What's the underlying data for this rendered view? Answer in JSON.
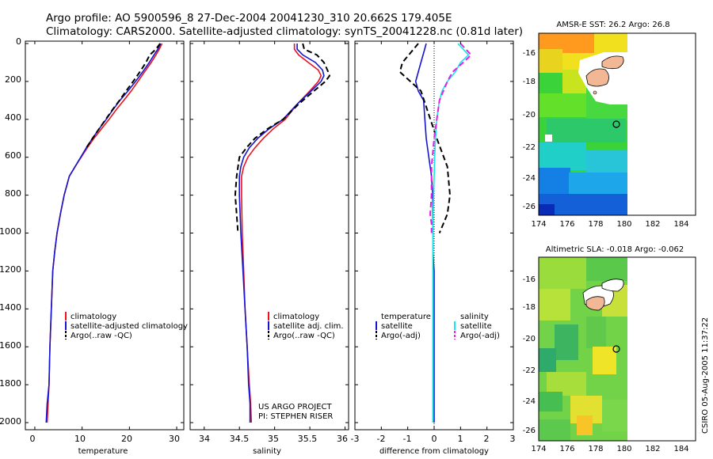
{
  "title_line1": "Argo profile: AO 5900596_8 27-Dec-2004 20041230_310 20.662S 179.405E",
  "title_line2": "Climatology: CARS2000. Satellite-adjusted climatology: synTS_20041228.nc (0.81d later)",
  "project_line1": "US ARGO PROJECT",
  "project_line2": "PI: STEPHEN RISER",
  "side_stamp": "CSIRO 05-Aug-2005 11:37:22",
  "colors": {
    "red": "#e8141e",
    "blue": "#1414d2",
    "black": "#000000",
    "cyan": "#18e6ee",
    "magenta": "#e61ee6"
  },
  "chart_data": [
    {
      "type": "line",
      "xlabel": "temperature",
      "ylabel": "",
      "xlim": [
        -2,
        31.5
      ],
      "ylim": [
        2050,
        0
      ],
      "xticks": [
        "0",
        "10",
        "20",
        "30"
      ],
      "yticks": [
        "0",
        "200",
        "400",
        "600",
        "800",
        "1000",
        "1200",
        "1400",
        "1600",
        "1800",
        "2000"
      ],
      "legend": [
        "climatology",
        "satellite-adjusted climatology",
        "Argo(..raw -QC)"
      ],
      "series": [
        {
          "name": "climatology",
          "color": "red",
          "dashed": false,
          "x": [
            26.9,
            26.3,
            25.6,
            24.6,
            23.2,
            21.8,
            20.4,
            18.8,
            17.2,
            15.7,
            14.1,
            12.5,
            11.1,
            9.8,
            8.5,
            7.3,
            6.2,
            5.4,
            4.7,
            4.2,
            3.8,
            3.5,
            3.2,
            3.0,
            2.8,
            2.6
          ],
          "y": [
            0,
            30,
            60,
            100,
            150,
            200,
            250,
            300,
            350,
            400,
            450,
            500,
            550,
            600,
            650,
            700,
            800,
            900,
            1000,
            1100,
            1200,
            1400,
            1600,
            1800,
            1900,
            2000
          ]
        },
        {
          "name": "satellite-adjusted climatology",
          "color": "blue",
          "dashed": false,
          "x": [
            26.6,
            26.0,
            25.2,
            24.2,
            22.8,
            21.3,
            19.7,
            18.0,
            16.5,
            15.1,
            13.6,
            12.2,
            10.9,
            9.7,
            8.5,
            7.3,
            6.2,
            5.4,
            4.7,
            4.2,
            3.8,
            3.5,
            3.2,
            3.0,
            2.6,
            2.4
          ],
          "y": [
            0,
            30,
            60,
            100,
            150,
            200,
            250,
            300,
            350,
            400,
            450,
            500,
            550,
            600,
            650,
            700,
            800,
            900,
            1000,
            1100,
            1200,
            1400,
            1600,
            1800,
            1900,
            2000
          ]
        },
        {
          "name": "Argo(..raw -QC)",
          "color": "black",
          "dashed": true,
          "x": [
            26.5,
            25.6,
            24.3,
            23.5,
            22.2,
            20.8,
            19.3,
            17.9,
            16.4,
            15.0,
            13.6,
            12.2,
            10.9
          ],
          "y": [
            0,
            30,
            60,
            100,
            150,
            200,
            250,
            300,
            350,
            400,
            450,
            500,
            550
          ]
        }
      ]
    },
    {
      "type": "line",
      "xlabel": "salinity",
      "ylabel": "",
      "xlim": [
        33.8,
        36.05
      ],
      "ylim": [
        2050,
        0
      ],
      "xticks": [
        "34",
        "34.5",
        "35",
        "35.5",
        "36"
      ],
      "yticks": [],
      "legend": [
        "climatology",
        "satellite adj. clim.",
        "Argo(..raw -QC)"
      ],
      "series": [
        {
          "name": "climatology",
          "color": "red",
          "dashed": false,
          "x": [
            35.28,
            35.28,
            35.34,
            35.48,
            35.62,
            35.66,
            35.62,
            35.5,
            35.32,
            35.15,
            34.98,
            34.84,
            34.72,
            34.62,
            34.56,
            34.53,
            34.53,
            34.54,
            34.56,
            34.58,
            34.61,
            34.64,
            34.66,
            34.67
          ],
          "y": [
            0,
            30,
            60,
            100,
            140,
            170,
            200,
            250,
            320,
            400,
            450,
            500,
            550,
            600,
            650,
            700,
            800,
            1000,
            1200,
            1400,
            1600,
            1800,
            1900,
            2000
          ]
        },
        {
          "name": "satellite adj. clim.",
          "color": "blue",
          "dashed": false,
          "x": [
            35.32,
            35.32,
            35.4,
            35.58,
            35.68,
            35.7,
            35.66,
            35.52,
            35.32,
            35.12,
            34.92,
            34.76,
            34.64,
            34.56,
            34.52,
            34.5,
            34.5,
            34.52,
            34.55,
            34.58,
            34.61,
            34.63,
            34.65,
            34.65
          ],
          "y": [
            0,
            30,
            60,
            100,
            140,
            170,
            200,
            250,
            320,
            400,
            450,
            500,
            550,
            600,
            650,
            700,
            800,
            1000,
            1200,
            1400,
            1600,
            1800,
            1900,
            2000
          ]
        },
        {
          "name": "Argo(..raw -QC)",
          "color": "black",
          "dashed": true,
          "x": [
            35.4,
            35.42,
            35.6,
            35.7,
            35.75,
            35.78,
            35.72,
            35.56,
            35.34,
            35.12,
            34.9,
            34.72,
            34.6,
            34.5,
            34.46,
            34.44,
            34.46,
            34.48
          ],
          "y": [
            0,
            30,
            60,
            100,
            140,
            170,
            200,
            250,
            320,
            400,
            450,
            500,
            550,
            600,
            700,
            800,
            900,
            1000
          ]
        }
      ]
    },
    {
      "type": "line",
      "xlabel": "difference from climatology",
      "ylabel": "",
      "xlim": [
        -3,
        3
      ],
      "ylim": [
        2050,
        0
      ],
      "xticks": [
        "-3",
        "-2",
        "-1",
        "0",
        "1",
        "2",
        "3"
      ],
      "yticks": [],
      "legend": [
        "temperature",
        "satellite",
        "Argo(-adj)",
        "salinity",
        "satellite",
        "Argo(-adj)"
      ],
      "series": [
        {
          "name": "satellite",
          "color": "blue",
          "dashed": false,
          "x": [
            -0.3,
            -0.4,
            -0.5,
            -0.6,
            -0.7,
            -0.6,
            -0.4,
            -0.35,
            -0.3,
            -0.2,
            -0.1,
            -0.05,
            -0.05,
            -0.05,
            -0.05,
            0,
            0,
            0,
            0,
            0,
            0
          ],
          "y": [
            0,
            50,
            100,
            150,
            200,
            250,
            300,
            400,
            500,
            600,
            700,
            800,
            900,
            1000,
            1100,
            1200,
            1400,
            1600,
            1800,
            1900,
            2000
          ]
        },
        {
          "name": "Argo(-adj)",
          "color": "black",
          "dashed": true,
          "x": [
            -0.6,
            -0.9,
            -1.2,
            -1.3,
            -0.9,
            -0.5,
            0.1,
            0.5,
            0.6,
            0.5,
            0.2
          ],
          "y": [
            0,
            50,
            100,
            150,
            200,
            250,
            500,
            650,
            800,
            900,
            1000
          ]
        },
        {
          "name": "satellite",
          "color": "cyan",
          "dashed": false,
          "x": [
            0.9,
            1.1,
            1.3,
            1.0,
            0.8,
            0.5,
            0.3,
            0.2,
            0.1,
            0.05,
            0.02,
            0.0,
            -0.02,
            -0.04,
            -0.05,
            -0.05,
            -0.05,
            -0.05,
            -0.05,
            -0.05,
            -0.05,
            -0.05,
            -0.05
          ],
          "y": [
            0,
            30,
            60,
            100,
            150,
            200,
            250,
            300,
            400,
            500,
            600,
            700,
            800,
            900,
            1000,
            1100,
            1200,
            1400,
            1500,
            1600,
            1800,
            1900,
            2000
          ]
        },
        {
          "name": "Argo(-adj)",
          "color": "magenta",
          "dashed": true,
          "x": [
            1.0,
            1.2,
            1.4,
            1.1,
            0.7,
            0.5,
            0.2,
            0.0,
            -0.1,
            -0.1,
            -0.15,
            -0.1,
            -0.1
          ],
          "y": [
            0,
            30,
            60,
            100,
            150,
            200,
            300,
            500,
            650,
            800,
            900,
            950,
            1000
          ]
        }
      ]
    }
  ],
  "maps": [
    {
      "title": "AMSR-E SST: 26.2 Argo: 26.8",
      "xticks": [
        "174",
        "176",
        "178",
        "180",
        "182",
        "184"
      ],
      "yticks": [
        "-16",
        "-18",
        "-20",
        "-22",
        "-24",
        "-26"
      ],
      "argo_lon": 179.405,
      "argo_lat": -20.662
    },
    {
      "title": "Altimetric SLA: -0.018 Argo: -0.062",
      "xticks": [
        "174",
        "176",
        "178",
        "180",
        "182",
        "184"
      ],
      "yticks": [
        "-16",
        "-18",
        "-20",
        "-22",
        "-24",
        "-26"
      ],
      "argo_lon": 179.405,
      "argo_lat": -20.662
    }
  ]
}
